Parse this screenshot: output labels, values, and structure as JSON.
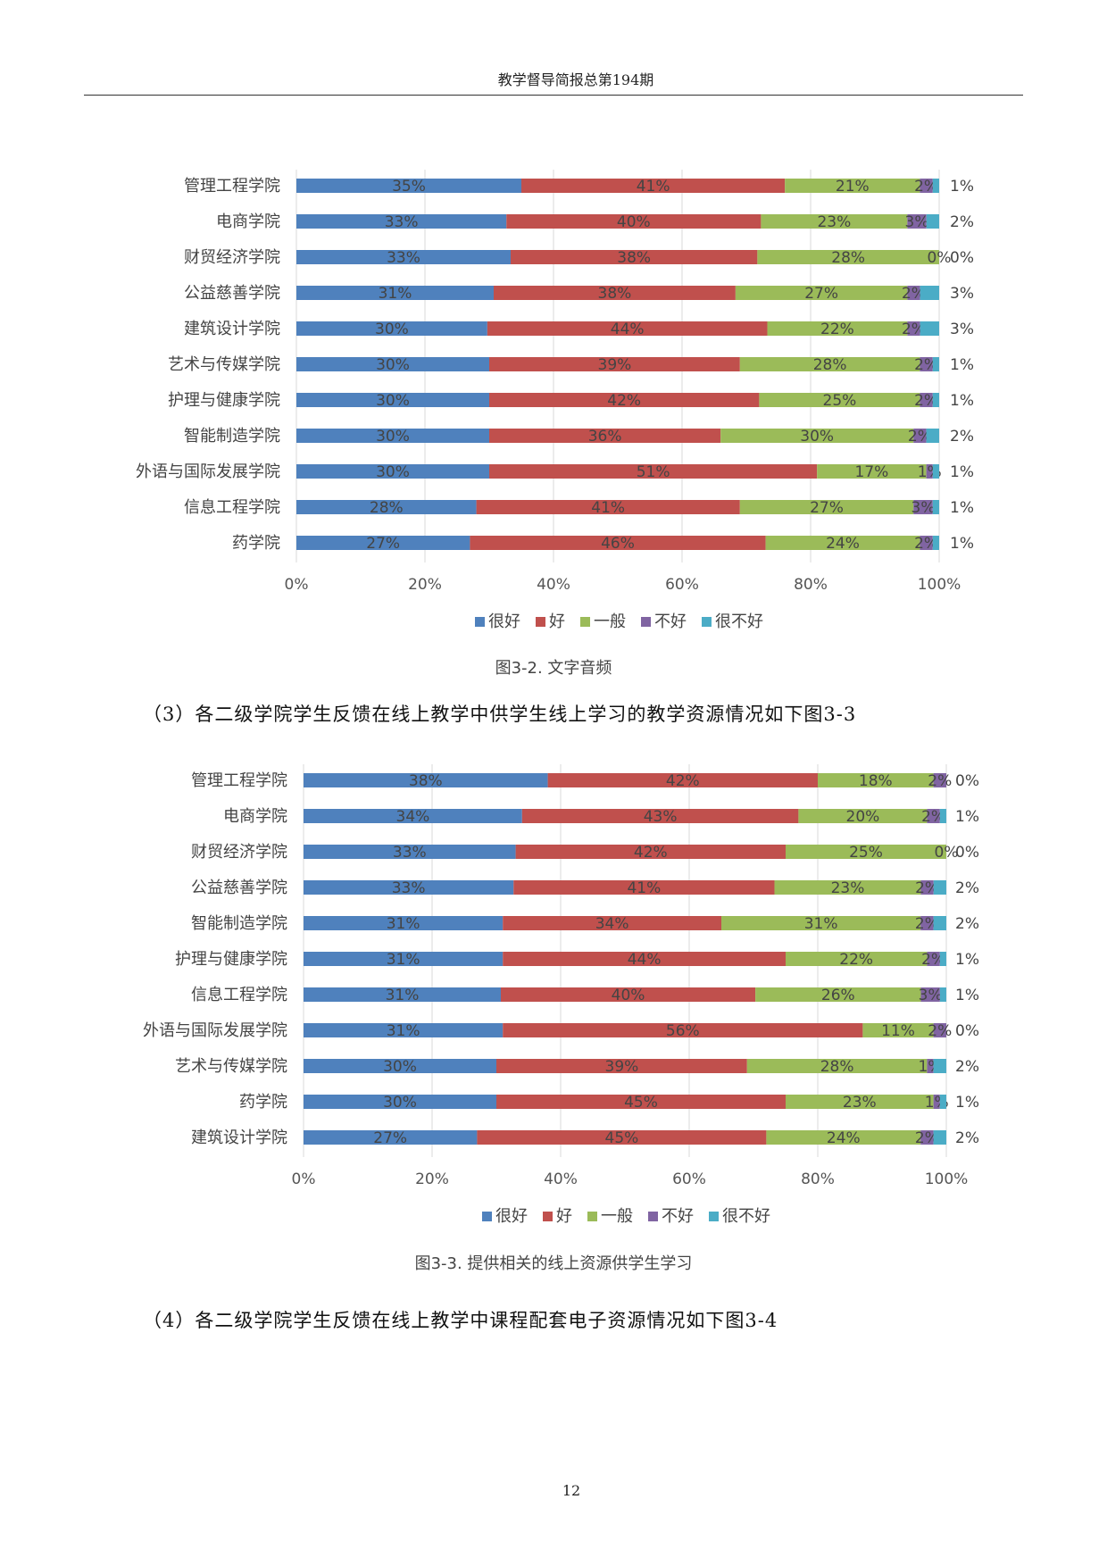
{
  "header": {
    "title": "教学督导简报总第194期"
  },
  "page_number": "12",
  "paragraphs": {
    "p3": "（3）各二级学院学生反馈在线上教学中供学生线上学习的教学资源情况如下图3-3",
    "p4": "（4）各二级学院学生反馈在线上教学中课程配套电子资源情况如下图3-4"
  },
  "captions": {
    "fig32": "图3-2. 文字音频",
    "fig33": "图3-3. 提供相关的线上资源供学生学习"
  },
  "chart_data": [
    {
      "type": "bar",
      "orientation": "horizontal",
      "stacked": true,
      "percent_stacked": true,
      "title": "",
      "caption": "图3-2. 文字音频",
      "categories": [
        "管理工程学院",
        "电商学院",
        "财贸经济学院",
        "公益慈善学院",
        "建筑设计学院",
        "艺术与传媒学院",
        "护理与健康学院",
        "智能制造学院",
        "外语与国际发展学院",
        "信息工程学院",
        "药学院"
      ],
      "series": [
        {
          "name": "很好",
          "color": "#4f81bd",
          "values": [
            35,
            33,
            33,
            31,
            30,
            30,
            30,
            30,
            30,
            28,
            27
          ]
        },
        {
          "name": "好",
          "color": "#c0504d",
          "values": [
            41,
            40,
            38,
            38,
            44,
            39,
            42,
            36,
            51,
            41,
            46
          ]
        },
        {
          "name": "一般",
          "color": "#9bbb59",
          "values": [
            21,
            23,
            28,
            27,
            22,
            28,
            25,
            30,
            17,
            27,
            24
          ]
        },
        {
          "name": "不好",
          "color": "#8064a2",
          "values": [
            2,
            3,
            0,
            2,
            2,
            2,
            2,
            2,
            1,
            3,
            2
          ]
        },
        {
          "name": "很不好",
          "color": "#4bacc6",
          "values": [
            1,
            2,
            0,
            3,
            3,
            1,
            1,
            2,
            1,
            1,
            1
          ]
        }
      ],
      "x_ticks": [
        "0%",
        "20%",
        "40%",
        "60%",
        "80%",
        "100%"
      ],
      "xlim": [
        0,
        100
      ],
      "legend_position": "bottom",
      "grid": true
    },
    {
      "type": "bar",
      "orientation": "horizontal",
      "stacked": true,
      "percent_stacked": true,
      "title": "",
      "caption": "图3-3. 提供相关的线上资源供学生学习",
      "categories": [
        "管理工程学院",
        "电商学院",
        "财贸经济学院",
        "公益慈善学院",
        "智能制造学院",
        "护理与健康学院",
        "信息工程学院",
        "外语与国际发展学院",
        "艺术与传媒学院",
        "药学院",
        "建筑设计学院"
      ],
      "series": [
        {
          "name": "很好",
          "color": "#4f81bd",
          "values": [
            38,
            34,
            33,
            33,
            31,
            31,
            31,
            31,
            30,
            30,
            27
          ]
        },
        {
          "name": "好",
          "color": "#c0504d",
          "values": [
            42,
            43,
            42,
            41,
            34,
            44,
            40,
            56,
            39,
            45,
            45
          ]
        },
        {
          "name": "一般",
          "color": "#9bbb59",
          "values": [
            18,
            20,
            25,
            23,
            31,
            22,
            26,
            11,
            28,
            23,
            24
          ]
        },
        {
          "name": "不好",
          "color": "#8064a2",
          "values": [
            2,
            2,
            0,
            2,
            2,
            2,
            3,
            2,
            1,
            1,
            2
          ]
        },
        {
          "name": "很不好",
          "color": "#4bacc6",
          "values": [
            0,
            1,
            0,
            2,
            2,
            1,
            1,
            0,
            2,
            1,
            2
          ]
        }
      ],
      "x_ticks": [
        "0%",
        "20%",
        "40%",
        "60%",
        "80%",
        "100%"
      ],
      "xlim": [
        0,
        100
      ],
      "legend_position": "bottom",
      "grid": true
    }
  ]
}
